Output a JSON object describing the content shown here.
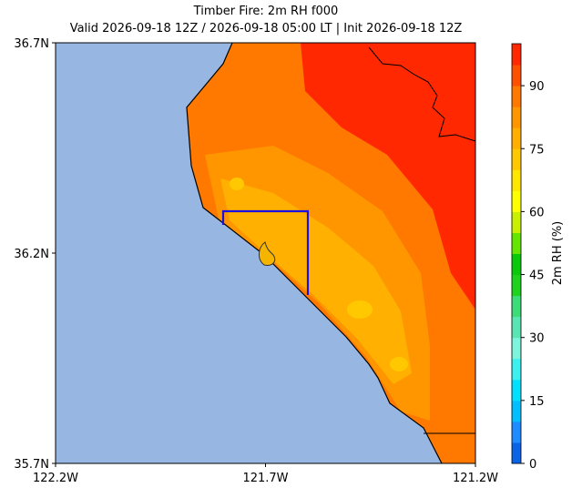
{
  "chart_data": {
    "type": "map",
    "title": "Timber Fire: 2m RH f000",
    "subtitle": "Valid 2026-09-18 12Z / 2026-09-18 05:00 LT | Init 2026-09-18 12Z",
    "xlim": [
      -122.2,
      -121.2
    ],
    "ylim": [
      35.7,
      36.7
    ],
    "xticks": [
      {
        "value": -122.2,
        "label": "122.2W"
      },
      {
        "value": -121.7,
        "label": "121.7W"
      },
      {
        "value": -121.2,
        "label": "121.2W"
      }
    ],
    "yticks": [
      {
        "value": 35.7,
        "label": "35.7N"
      },
      {
        "value": 36.2,
        "label": "36.2N"
      },
      {
        "value": 36.7,
        "label": "36.7N"
      }
    ],
    "colorbar": {
      "label": "2m RH (%)",
      "lim": [
        0,
        100
      ],
      "ticks": [
        0,
        15,
        30,
        45,
        60,
        75,
        90
      ],
      "colors": [
        "#0a64e6",
        "#1e8cff",
        "#00bfff",
        "#00e1ff",
        "#3cf0f0",
        "#7cf5dc",
        "#5ae6b4",
        "#3cdc78",
        "#1ed21e",
        "#0ac80a",
        "#64e600",
        "#c8f000",
        "#ffff00",
        "#ffe600",
        "#ffc800",
        "#ffaf00",
        "#ff9600",
        "#ff7800",
        "#ff5000",
        "#ff2800"
      ]
    }
  }
}
